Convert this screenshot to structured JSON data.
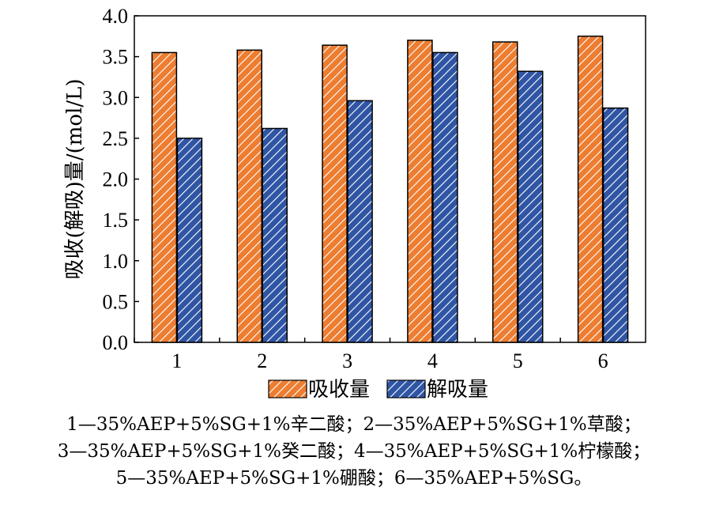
{
  "chart_data": {
    "type": "bar",
    "categories": [
      "1",
      "2",
      "3",
      "4",
      "5",
      "6"
    ],
    "series": [
      {
        "name": "吸收量",
        "values": [
          3.55,
          3.58,
          3.64,
          3.7,
          3.68,
          3.75
        ],
        "color": "#ed7d31"
      },
      {
        "name": "解吸量",
        "values": [
          2.5,
          2.62,
          2.96,
          3.55,
          3.32,
          2.87
        ],
        "color": "#2f55a4"
      }
    ],
    "yticks": [
      "0.0",
      "0.5",
      "1.0",
      "1.5",
      "2.0",
      "2.5",
      "3.0",
      "3.5",
      "4.0"
    ],
    "ylim": [
      0,
      4
    ],
    "ylabel": "吸收(解吸)量/(mol/L)",
    "xlabel": "",
    "legend_position": "bottom",
    "grid": false,
    "pattern": "diagonal-hatch"
  },
  "caption_lines": [
    "1—35%AEP+5%SG+1%辛二酸；2—35%AEP+5%SG+1%草酸；",
    "3—35%AEP+5%SG+1%癸二酸；4—35%AEP+5%SG+1%柠檬酸；",
    "5—35%AEP+5%SG+1%硼酸；6—35%AEP+5%SG。"
  ]
}
